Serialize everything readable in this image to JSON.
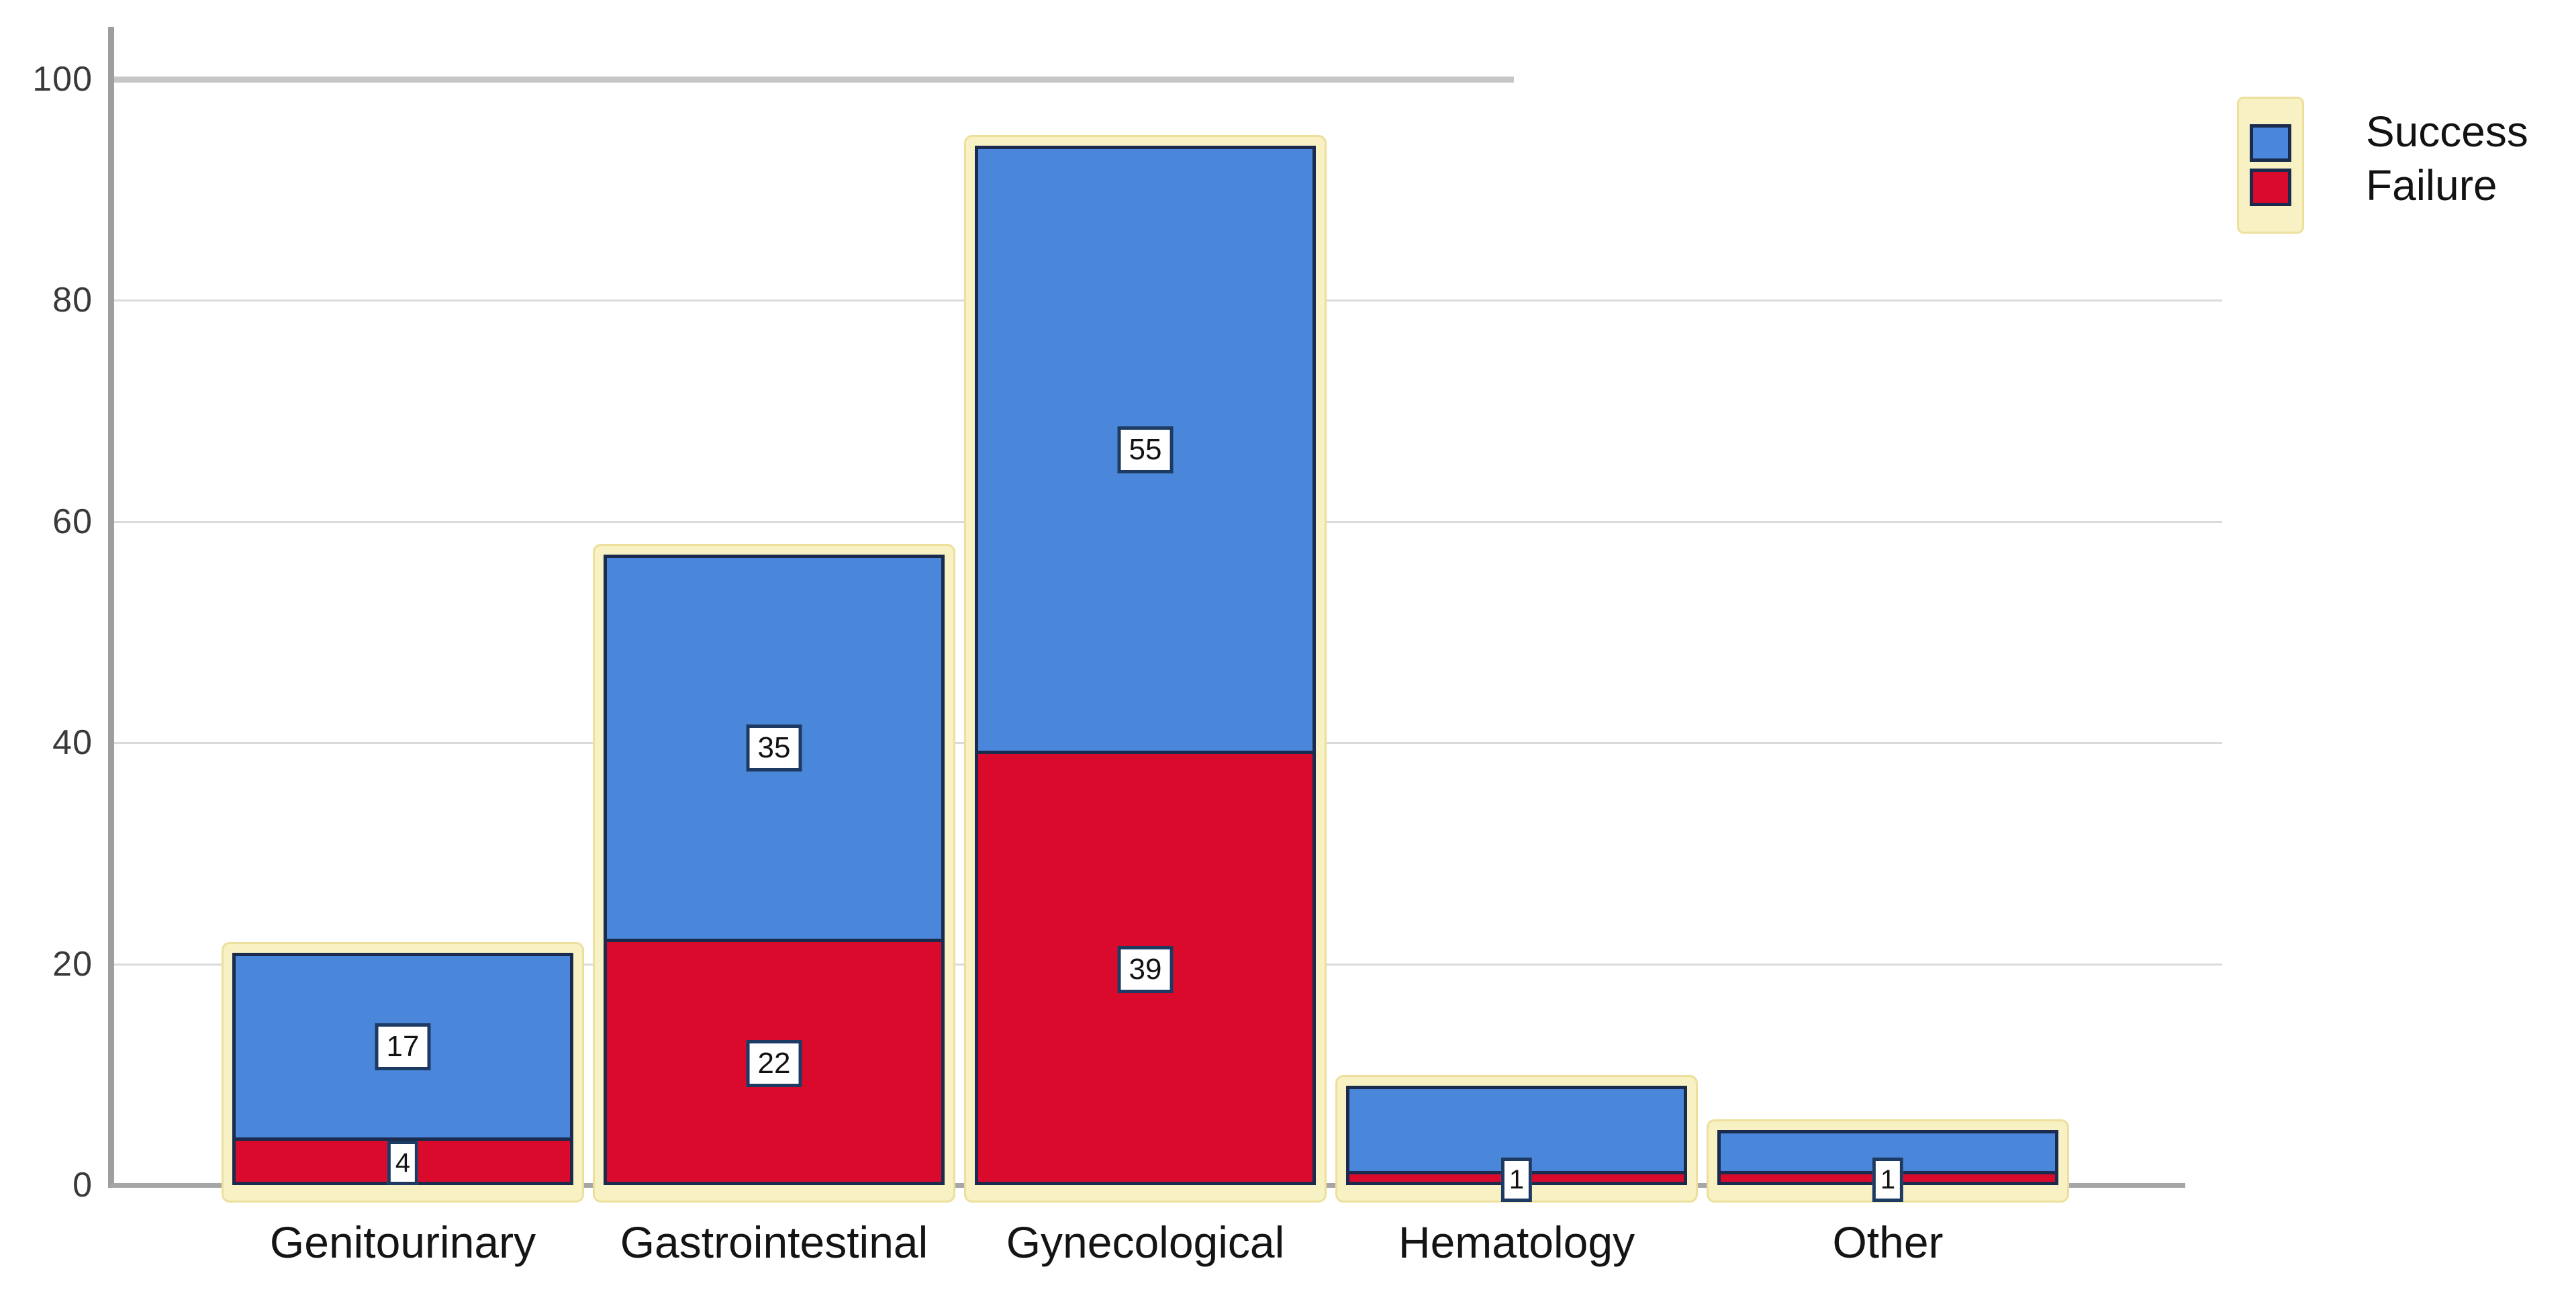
{
  "chart_data": {
    "type": "bar",
    "stacked": true,
    "title": "",
    "categories": [
      "Genitourinary",
      "Gastrointestinal",
      "Gynecological",
      "Hematology",
      "Other"
    ],
    "series": [
      {
        "name": "Failure",
        "color": "#da0a2d",
        "values": [
          4,
          22,
          39,
          1,
          1
        ],
        "data_labels": [
          "4",
          "22",
          "39",
          "1",
          "1"
        ]
      },
      {
        "name": "Success",
        "color": "#4a86d9",
        "values": [
          17,
          35,
          55,
          8,
          4
        ],
        "data_labels": [
          "17",
          "35",
          "55",
          "",
          ""
        ]
      }
    ],
    "totals": [
      21,
      57,
      94,
      9,
      5
    ],
    "xlabel": "",
    "ylabel": "",
    "ylim": [
      0,
      100
    ],
    "yticks": [
      "0",
      "20",
      "40",
      "60",
      "80",
      "100"
    ],
    "grid": true,
    "legend_position": "top-right"
  },
  "legend": {
    "items": [
      {
        "label": "Success",
        "color": "#4a86d9"
      },
      {
        "label": "Failure",
        "color": "#da0a2d"
      }
    ]
  },
  "colors": {
    "success_blue": "#4a86d9",
    "failure_red": "#da0a2d",
    "bar_border_navy": "#1b2b4d",
    "selection_halo_yellow": "#f7f1c4",
    "gridline_gray": "#dadada",
    "top_gridline_gray": "#c6c6c6",
    "axis_gray": "#9e9e9e",
    "tick_text": "#3a3a3a",
    "category_text": "#141414",
    "label_box_border": "#1d3a63"
  }
}
